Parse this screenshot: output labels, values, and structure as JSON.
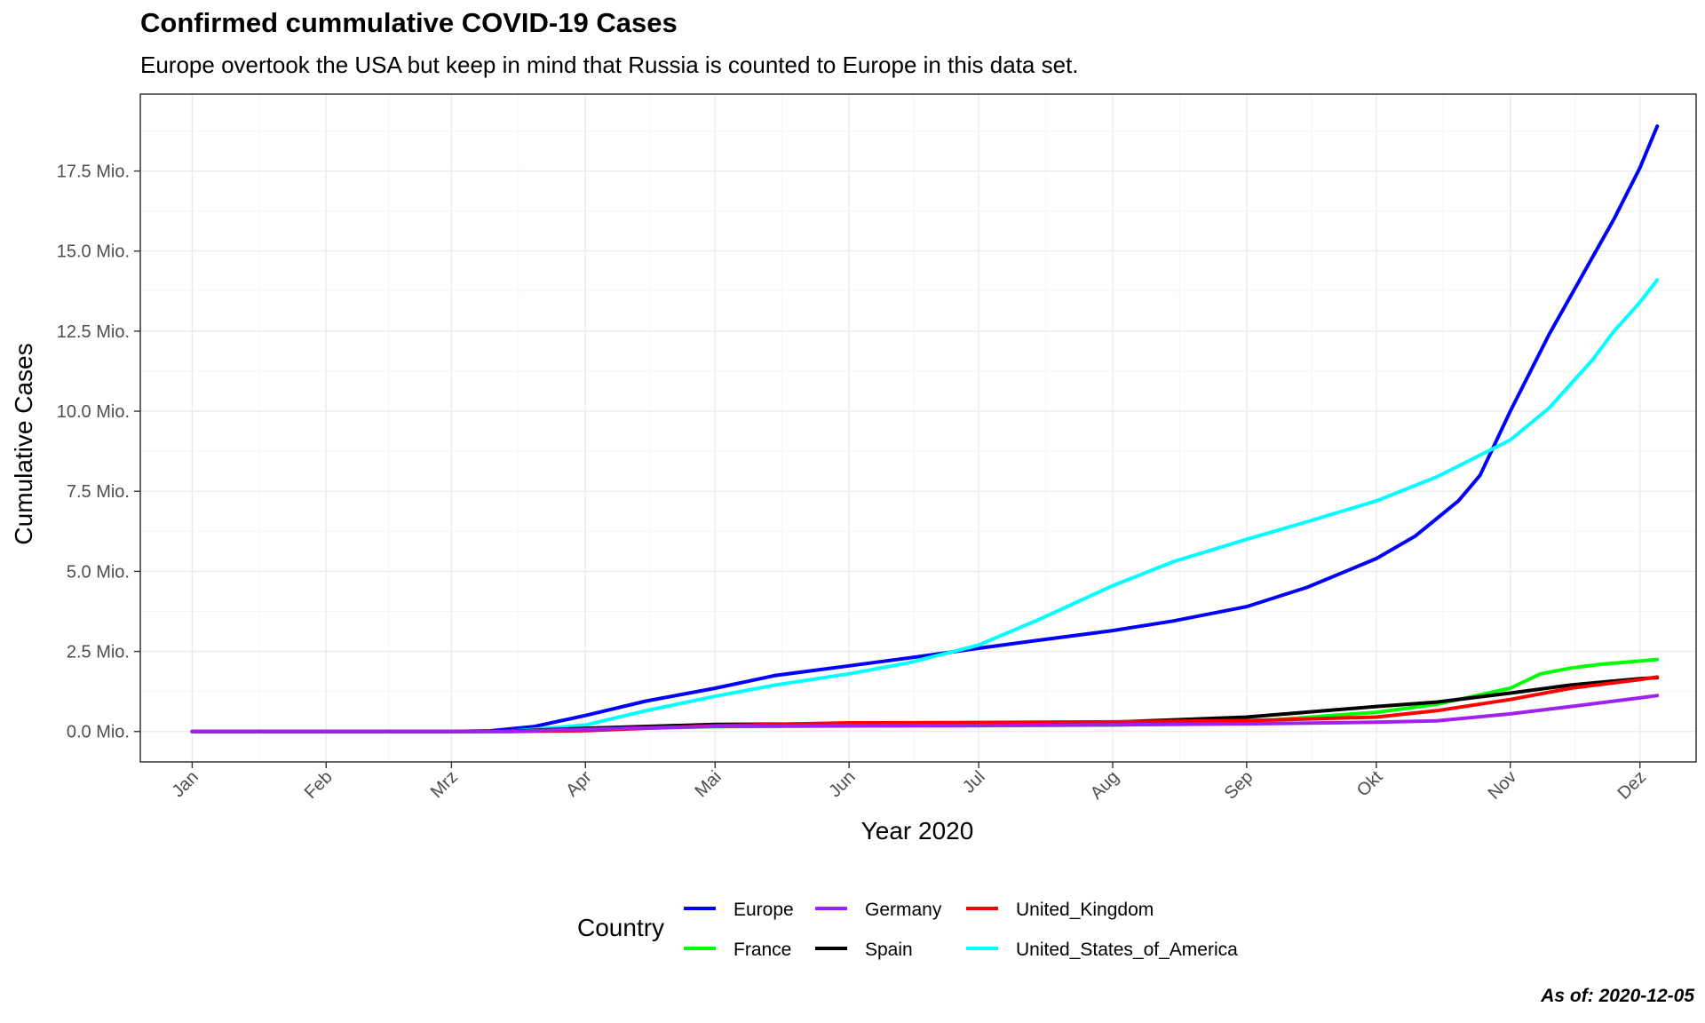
{
  "chart_data": {
    "type": "line",
    "title": "Confirmed cummulative COVID-19 Cases",
    "subtitle": "Europe overtook the USA but keep in mind that Russia is counted to Europe in this data set.",
    "xlabel": "Year 2020",
    "ylabel": "Cumulative Cases",
    "caption": "As of: 2020-12-05",
    "x_tick_labels": [
      "Jan",
      "Feb",
      "Mrz",
      "Apr",
      "Mai",
      "Jun",
      "Jul",
      "Aug",
      "Sep",
      "Okt",
      "Nov",
      "Dez"
    ],
    "x_tick_dates": [
      "2020-01-01",
      "2020-02-01",
      "2020-03-01",
      "2020-04-01",
      "2020-05-01",
      "2020-06-01",
      "2020-07-01",
      "2020-08-01",
      "2020-09-01",
      "2020-10-01",
      "2020-11-01",
      "2020-12-01"
    ],
    "xlim": [
      "2019-12-20",
      "2020-12-14"
    ],
    "y_unit": "Mio.",
    "y_ticks": [
      0.0,
      2.5,
      5.0,
      7.5,
      10.0,
      12.5,
      15.0,
      17.5
    ],
    "y_tick_labels": [
      "0.0 Mio.",
      "2.5 Mio.",
      "5.0 Mio.",
      "7.5 Mio.",
      "10.0 Mio.",
      "12.5 Mio.",
      "15.0 Mio.",
      "17.5 Mio."
    ],
    "ylim": [
      -0.95,
      19.9
    ],
    "grid": true,
    "legend": {
      "title": "Country",
      "position": "bottom"
    },
    "series": [
      {
        "name": "Europe",
        "color": "#0000FF",
        "x": [
          "2020-01-01",
          "2020-02-01",
          "2020-03-01",
          "2020-03-10",
          "2020-03-20",
          "2020-04-01",
          "2020-04-15",
          "2020-05-01",
          "2020-05-15",
          "2020-06-01",
          "2020-06-15",
          "2020-07-01",
          "2020-07-15",
          "2020-08-01",
          "2020-08-15",
          "2020-09-01",
          "2020-09-15",
          "2020-10-01",
          "2020-10-10",
          "2020-10-20",
          "2020-10-25",
          "2020-11-01",
          "2020-11-10",
          "2020-11-20",
          "2020-11-25",
          "2020-12-01",
          "2020-12-05"
        ],
        "y": [
          0,
          0,
          0,
          0.02,
          0.15,
          0.5,
          0.95,
          1.35,
          1.75,
          2.05,
          2.3,
          2.6,
          2.85,
          3.15,
          3.45,
          3.9,
          4.5,
          5.4,
          6.1,
          7.2,
          8.0,
          10.0,
          12.4,
          14.8,
          16.0,
          17.6,
          18.9
        ]
      },
      {
        "name": "United_States_of_America",
        "color": "#00FFFF",
        "x": [
          "2020-01-01",
          "2020-02-01",
          "2020-03-01",
          "2020-03-15",
          "2020-04-01",
          "2020-04-15",
          "2020-05-01",
          "2020-05-15",
          "2020-06-01",
          "2020-06-15",
          "2020-07-01",
          "2020-07-15",
          "2020-08-01",
          "2020-08-15",
          "2020-09-01",
          "2020-09-15",
          "2020-10-01",
          "2020-10-15",
          "2020-11-01",
          "2020-11-10",
          "2020-11-20",
          "2020-11-25",
          "2020-12-01",
          "2020-12-05"
        ],
        "y": [
          0,
          0,
          0,
          0.01,
          0.2,
          0.65,
          1.1,
          1.45,
          1.8,
          2.15,
          2.7,
          3.5,
          4.55,
          5.3,
          6.0,
          6.55,
          7.2,
          7.95,
          9.1,
          10.1,
          11.6,
          12.5,
          13.4,
          14.1
        ]
      },
      {
        "name": "France",
        "color": "#00FF00",
        "x": [
          "2020-01-01",
          "2020-03-01",
          "2020-03-15",
          "2020-04-01",
          "2020-05-01",
          "2020-06-01",
          "2020-07-01",
          "2020-08-01",
          "2020-09-01",
          "2020-10-01",
          "2020-10-15",
          "2020-11-01",
          "2020-11-08",
          "2020-11-15",
          "2020-11-22",
          "2020-12-01",
          "2020-12-05"
        ],
        "y": [
          0,
          0,
          0.005,
          0.06,
          0.15,
          0.17,
          0.18,
          0.2,
          0.3,
          0.6,
          0.85,
          1.35,
          1.8,
          1.98,
          2.1,
          2.2,
          2.25
        ]
      },
      {
        "name": "Spain",
        "color": "#000000",
        "x": [
          "2020-01-01",
          "2020-03-01",
          "2020-03-15",
          "2020-04-01",
          "2020-05-01",
          "2020-06-01",
          "2020-07-01",
          "2020-08-01",
          "2020-09-01",
          "2020-10-01",
          "2020-10-15",
          "2020-11-01",
          "2020-11-15",
          "2020-12-01",
          "2020-12-05"
        ],
        "y": [
          0,
          0,
          0.01,
          0.1,
          0.22,
          0.24,
          0.25,
          0.29,
          0.45,
          0.78,
          0.92,
          1.2,
          1.45,
          1.65,
          1.68
        ]
      },
      {
        "name": "United_Kingdom",
        "color": "#FF0000",
        "x": [
          "2020-01-01",
          "2020-03-01",
          "2020-03-15",
          "2020-04-01",
          "2020-05-01",
          "2020-06-01",
          "2020-07-01",
          "2020-08-01",
          "2020-09-01",
          "2020-10-01",
          "2020-10-15",
          "2020-11-01",
          "2020-11-15",
          "2020-12-01",
          "2020-12-05"
        ],
        "y": [
          0,
          0,
          0.002,
          0.03,
          0.18,
          0.27,
          0.28,
          0.3,
          0.34,
          0.45,
          0.65,
          1.0,
          1.35,
          1.62,
          1.7
        ]
      },
      {
        "name": "Germany",
        "color": "#A020F0",
        "x": [
          "2020-01-01",
          "2020-03-01",
          "2020-03-15",
          "2020-04-01",
          "2020-05-01",
          "2020-06-01",
          "2020-07-01",
          "2020-08-01",
          "2020-09-01",
          "2020-10-01",
          "2020-10-15",
          "2020-11-01",
          "2020-11-15",
          "2020-12-01",
          "2020-12-05"
        ],
        "y": [
          0,
          0,
          0.005,
          0.07,
          0.16,
          0.18,
          0.19,
          0.21,
          0.24,
          0.29,
          0.33,
          0.55,
          0.78,
          1.05,
          1.12
        ]
      }
    ],
    "legend_entries": [
      {
        "name": "Europe",
        "color": "#0000FF"
      },
      {
        "name": "France",
        "color": "#00FF00"
      },
      {
        "name": "Germany",
        "color": "#A020F0"
      },
      {
        "name": "Spain",
        "color": "#000000"
      },
      {
        "name": "United_Kingdom",
        "color": "#FF0000"
      },
      {
        "name": "United_States_of_America",
        "color": "#00FFFF"
      }
    ],
    "colors": {
      "grid_major": "#EBEBEB",
      "grid_minor": "#F5F5F5",
      "panel_border": "#333333",
      "tick_text": "#4D4D4D"
    }
  }
}
